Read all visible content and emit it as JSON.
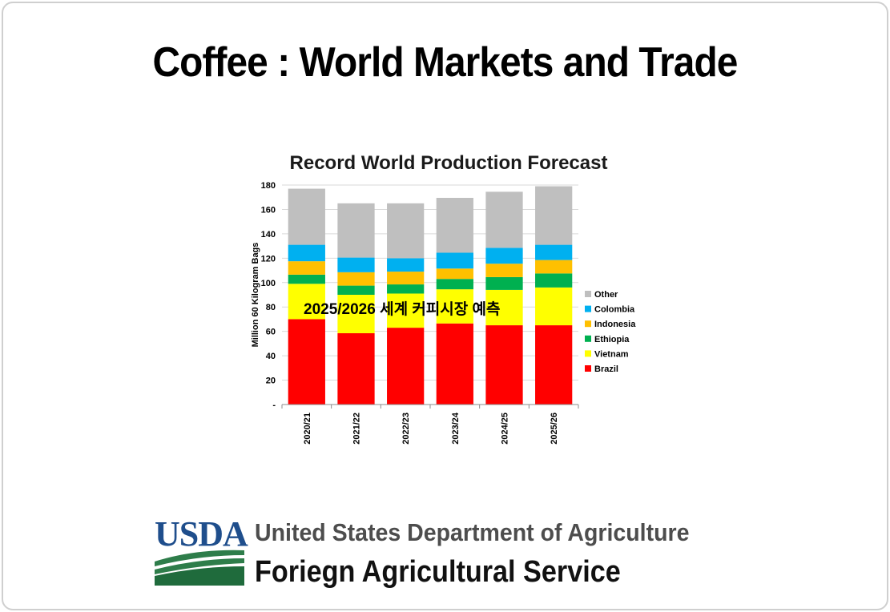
{
  "page": {
    "title": "Coffee : World Markets and Trade"
  },
  "chart_data": {
    "type": "bar",
    "stacked": true,
    "title": "Record World Production Forecast",
    "ylabel": "Million 60 Kilogram Bags",
    "xlabel": "",
    "ylim": [
      0,
      180
    ],
    "yticks": [
      0,
      20,
      40,
      60,
      80,
      100,
      120,
      140,
      160,
      180
    ],
    "ytick_labels": [
      "-",
      "20",
      "40",
      "60",
      "80",
      "100",
      "120",
      "140",
      "160",
      "180"
    ],
    "categories": [
      "2020/21",
      "2021/22",
      "2022/23",
      "2023/24",
      "2024/25",
      "2025/26"
    ],
    "series": [
      {
        "name": "Brazil",
        "color": "#ff0000",
        "values": [
          70,
          58.5,
          63,
          66.5,
          65,
          65
        ]
      },
      {
        "name": "Vietnam",
        "color": "#ffff00",
        "values": [
          29,
          31.5,
          28,
          28,
          29,
          31
        ]
      },
      {
        "name": "Ethiopia",
        "color": "#00b050",
        "values": [
          7.5,
          7.5,
          7.5,
          8.5,
          10.5,
          11.5
        ]
      },
      {
        "name": "Indonesia",
        "color": "#ffc000",
        "values": [
          11,
          11,
          10.5,
          8.5,
          11,
          11
        ]
      },
      {
        "name": "Colombia",
        "color": "#00b0f0",
        "values": [
          13.5,
          12,
          11,
          13,
          13,
          12.5
        ]
      },
      {
        "name": "Other",
        "color": "#bfbfbf",
        "values": [
          46,
          44.5,
          45,
          45,
          46,
          48
        ]
      }
    ],
    "legend_position": "right",
    "grid": true,
    "annotation": "2025/2026 세계 커피시장 예측"
  },
  "footer": {
    "logo_text": "USDA",
    "department": "United States Department of Agriculture",
    "agency": "Foriegn Agricultural Service"
  }
}
